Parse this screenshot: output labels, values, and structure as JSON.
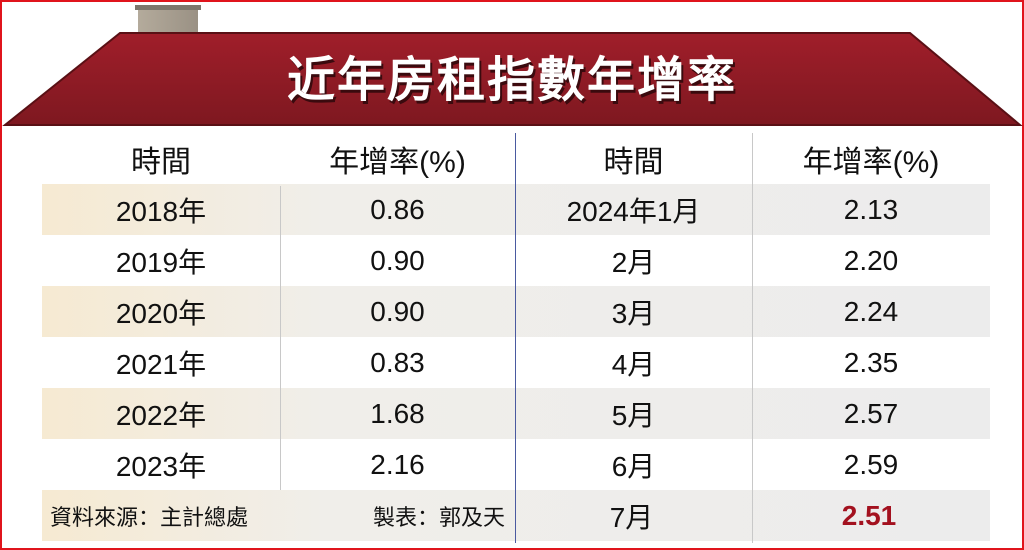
{
  "title": "近年房租指數年增率",
  "colors": {
    "roof": "#8e1c25",
    "border": "#e0141c",
    "highlight": "#a3111f",
    "center_divider": "#4a5aa0"
  },
  "chart_data": {
    "type": "table",
    "title": "近年房租指數年增率",
    "columns": [
      "時間",
      "年增率(%)",
      "時間",
      "年增率(%)"
    ],
    "left_rows": [
      {
        "time": "2018年",
        "rate": "0.86"
      },
      {
        "time": "2019年",
        "rate": "0.90"
      },
      {
        "time": "2020年",
        "rate": "0.90"
      },
      {
        "time": "2021年",
        "rate": "0.83"
      },
      {
        "time": "2022年",
        "rate": "1.68"
      },
      {
        "time": "2023年",
        "rate": "2.16"
      }
    ],
    "right_rows": [
      {
        "time": "2024年1月",
        "rate": "2.13"
      },
      {
        "time": "2月",
        "rate": "2.20"
      },
      {
        "time": "3月",
        "rate": "2.24"
      },
      {
        "time": "4月",
        "rate": "2.35"
      },
      {
        "time": "5月",
        "rate": "2.57"
      },
      {
        "time": "6月",
        "rate": "2.59"
      },
      {
        "time": "7月",
        "rate": "2.51",
        "highlighted": true
      }
    ]
  },
  "footer": {
    "source": "資料來源：主計總處",
    "author": "製表：郭及天"
  }
}
